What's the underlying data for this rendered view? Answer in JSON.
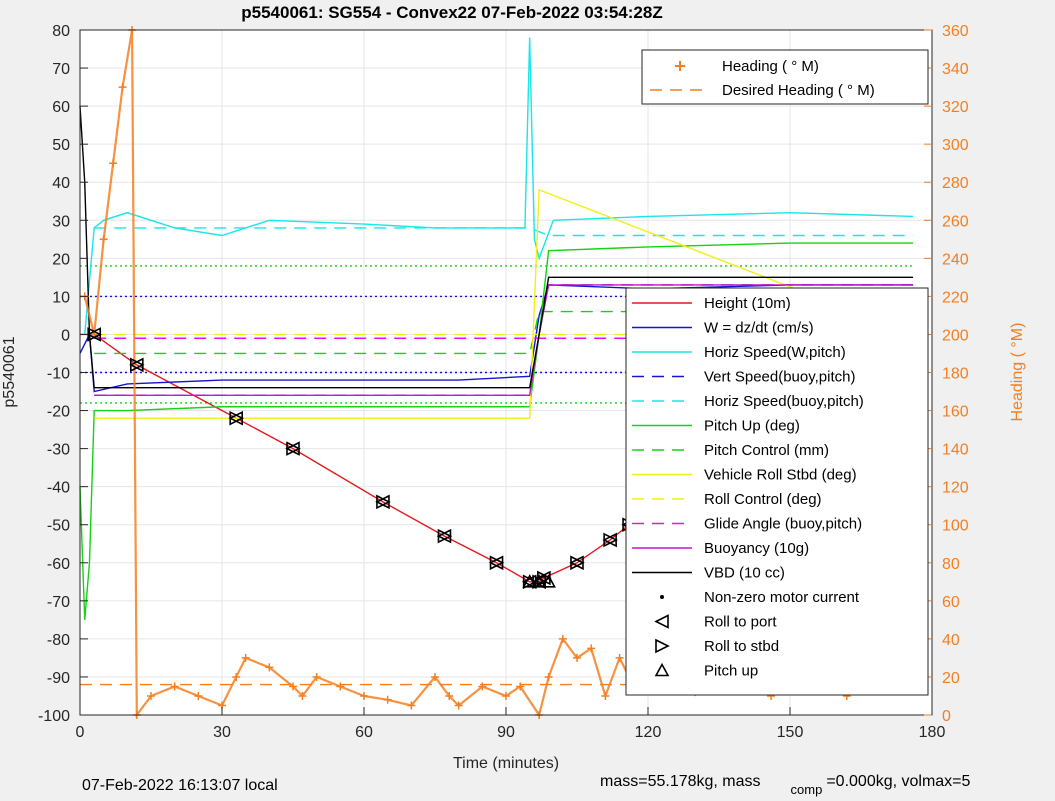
{
  "chart_data": {
    "type": "line",
    "title": "p5540061: SG554 - Convex22 07-Feb-2022 03:54:28Z",
    "xlabel": "Time (minutes)",
    "ylabel": "p5540061",
    "y2label": "Heading (  °M)",
    "xlim": [
      0,
      180
    ],
    "ylim": [
      -100,
      80
    ],
    "y2lim": [
      0,
      360
    ],
    "xticks": [
      "0",
      "30",
      "60",
      "90",
      "120",
      "150",
      "180"
    ],
    "yticks": [
      "80",
      "70",
      "60",
      "50",
      "40",
      "30",
      "20",
      "10",
      "0",
      "-10",
      "-20",
      "-30",
      "-40",
      "-50",
      "-60",
      "-70",
      "-80",
      "-90",
      "-100"
    ],
    "y2ticks": [
      "360",
      "340",
      "320",
      "300",
      "280",
      "260",
      "240",
      "220",
      "200",
      "180",
      "160",
      "140",
      "120",
      "100",
      "80",
      "60",
      "40",
      "20",
      "0"
    ],
    "grid": true,
    "legend_position": "right",
    "legend_heading": [
      {
        "label": "Heading (  ° M)",
        "color": "#f57f20",
        "style": "plus"
      },
      {
        "label": "Desired Heading (    ° M)",
        "color": "#f57f20",
        "style": "dashed"
      }
    ],
    "legend_main": [
      {
        "label": "Height (10m)",
        "color": "#e6191d",
        "style": "solid"
      },
      {
        "label": "W = dz/dt (cm/s)",
        "color": "#1414d2",
        "style": "solid"
      },
      {
        "label": "Horiz Speed(W,pitch)",
        "color": "#19e6e6",
        "style": "solid"
      },
      {
        "label": "Vert Speed(buoy,pitch)",
        "color": "#1414d2",
        "style": "dashed"
      },
      {
        "label": "Horiz Speed(buoy,pitch)",
        "color": "#19e6e6",
        "style": "dashed"
      },
      {
        "label": "Pitch Up (deg)",
        "color": "#14d214",
        "style": "solid"
      },
      {
        "label": "Pitch Control (mm)",
        "color": "#14d214",
        "style": "dashed"
      },
      {
        "label": "Vehicle Roll Stbd (deg)",
        "color": "#f0f014",
        "style": "solid"
      },
      {
        "label": "Roll Control (deg)",
        "color": "#f0f014",
        "style": "dashed"
      },
      {
        "label": "Glide Angle (buoy,pitch)",
        "color": "#e614e6",
        "style": "dashed"
      },
      {
        "label": "Buoyancy (10g)",
        "color": "#c814c8",
        "style": "solid"
      },
      {
        "label": "VBD (10 cc)",
        "color": "#000000",
        "style": "solid"
      },
      {
        "label": "Non-zero motor current",
        "color": "#000000",
        "style": "dot"
      },
      {
        "label": "Roll to port",
        "color": "#000000",
        "style": "tri-left"
      },
      {
        "label": "Roll to stbd",
        "color": "#000000",
        "style": "tri-right"
      },
      {
        "label": "Pitch up",
        "color": "#000000",
        "style": "tri-up"
      }
    ],
    "series": [
      {
        "name": "Height (10m)",
        "axis": "left",
        "color": "#e6191d",
        "x": [
          0,
          3,
          12,
          33,
          45,
          64,
          77,
          88,
          95,
          97,
          98,
          105,
          112,
          116,
          121,
          125,
          129,
          134,
          138,
          143,
          150,
          155,
          160,
          168,
          175
        ],
        "y": [
          0,
          0,
          -8,
          -22,
          -30,
          -44,
          -53,
          -60,
          -65,
          -65,
          -64,
          -60,
          -54,
          -50,
          -44,
          -40,
          -37,
          -32,
          -28,
          -23,
          -19,
          -16,
          -12,
          -6,
          -2
        ]
      },
      {
        "name": "W = dz/dt (cm/s)",
        "axis": "left",
        "color": "#1414d2",
        "x": [
          0,
          2,
          3,
          10,
          30,
          60,
          80,
          95,
          97,
          99,
          120,
          150,
          176
        ],
        "y": [
          -5,
          0,
          -15,
          -13,
          -12,
          -12,
          -12,
          -11,
          5,
          13,
          12,
          13,
          13
        ]
      },
      {
        "name": "Horiz Speed(W,pitch)",
        "axis": "left",
        "color": "#19e6e6",
        "x": [
          1,
          3,
          5,
          10,
          20,
          30,
          40,
          60,
          75,
          94,
          95,
          96,
          97,
          100,
          120,
          150,
          176
        ],
        "y": [
          0,
          28,
          30,
          32,
          28,
          26,
          30,
          29,
          28,
          28,
          78,
          25,
          20,
          30,
          31,
          32,
          31
        ]
      },
      {
        "name": "Vert Speed(buoy,pitch)",
        "axis": "left",
        "color": "#1414d2",
        "x": [
          3,
          95,
          97,
          99,
          176
        ],
        "y": [
          -16,
          -16,
          0,
          13,
          13
        ]
      },
      {
        "name": "Horiz Speed(buoy,pitch)",
        "axis": "left",
        "color": "#19e6e6",
        "x": [
          3,
          95,
          99,
          176
        ],
        "y": [
          28,
          28,
          26,
          26
        ]
      },
      {
        "name": "Pitch Up (deg)",
        "axis": "left",
        "color": "#14d214",
        "x": [
          0,
          1,
          2,
          3,
          10,
          30,
          60,
          95,
          97,
          99,
          120,
          150,
          176
        ],
        "y": [
          -40,
          -75,
          -60,
          -20,
          -20,
          -19,
          -19,
          -19,
          0,
          22,
          23,
          24,
          24
        ]
      },
      {
        "name": "Pitch Control (mm)",
        "axis": "left",
        "color": "#14d214",
        "x": [
          3,
          95,
          97,
          176
        ],
        "y": [
          -5,
          -5,
          6,
          6
        ]
      },
      {
        "name": "Vehicle Roll Stbd (deg)",
        "axis": "left",
        "color": "#f0f014",
        "x": [
          3,
          95,
          97,
          176
        ],
        "y": [
          -22,
          -22,
          38,
          0
        ]
      },
      {
        "name": "Roll Control (deg)",
        "axis": "left",
        "color": "#f0f014",
        "x": [
          3,
          176
        ],
        "y": [
          0,
          0
        ]
      },
      {
        "name": "Glide Angle (buoy,pitch)",
        "axis": "left",
        "color": "#e614e6",
        "x": [
          3,
          176
        ],
        "y": [
          -1,
          -1
        ]
      },
      {
        "name": "Buoyancy (10g)",
        "axis": "left",
        "color": "#c814c8",
        "x": [
          3,
          95,
          97,
          99,
          176
        ],
        "y": [
          -16,
          -16,
          0,
          13,
          13
        ]
      },
      {
        "name": "VBD (10 cc)",
        "axis": "left",
        "color": "#000000",
        "x": [
          0,
          1,
          2,
          3,
          95,
          97,
          99,
          176
        ],
        "y": [
          60,
          40,
          0,
          -14,
          -14,
          0,
          15,
          15
        ]
      },
      {
        "name": "Heading (  ° M)",
        "axis": "right",
        "color": "#f57f20",
        "x": [
          1,
          3,
          5,
          7,
          9,
          11,
          12,
          15,
          20,
          25,
          30,
          33,
          35,
          40,
          45,
          47,
          50,
          55,
          60,
          65,
          70,
          75,
          78,
          80,
          85,
          90,
          93,
          97,
          99,
          102,
          105,
          108,
          111,
          114,
          117,
          120,
          123,
          126,
          130,
          134,
          138,
          142,
          146,
          150,
          154,
          158,
          162,
          166,
          170,
          174,
          176
        ],
        "y": [
          220,
          200,
          250,
          290,
          330,
          360,
          0,
          10,
          15,
          10,
          5,
          20,
          30,
          25,
          15,
          10,
          20,
          15,
          10,
          8,
          5,
          20,
          10,
          5,
          15,
          10,
          15,
          0,
          20,
          40,
          30,
          35,
          10,
          30,
          15,
          28,
          20,
          30,
          12,
          32,
          18,
          28,
          10,
          30,
          15,
          28,
          10,
          30,
          20,
          25,
          15
        ]
      },
      {
        "name": "Desired Heading (    ° M)",
        "axis": "right",
        "color": "#f57f20",
        "x": [
          0,
          176
        ],
        "y": [
          16,
          16
        ]
      }
    ],
    "markers": {
      "roll_to_port_y": [
        0,
        -22,
        -30,
        -44,
        -53,
        -60,
        -65,
        -64,
        -60,
        -54,
        -50,
        -44,
        -40,
        -37,
        -32,
        -28,
        -23,
        -19,
        -16,
        -12,
        -6,
        -2
      ],
      "pitch_up_x": [
        95,
        97,
        99
      ]
    },
    "reference_lines": [
      {
        "y": 10,
        "color": "#1414d2",
        "style": "dotted"
      },
      {
        "y": -10,
        "color": "#1414d2",
        "style": "dotted"
      },
      {
        "y": 18,
        "color": "#14d214",
        "style": "dotted"
      },
      {
        "y": -18,
        "color": "#14d214",
        "style": "dotted"
      }
    ]
  },
  "footer": {
    "left": "07-Feb-2022 16:13:07 local",
    "right_a": "mass=55.178kg, mass",
    "right_sub": "comp",
    "right_b": "=0.000kg, volmax=5"
  }
}
